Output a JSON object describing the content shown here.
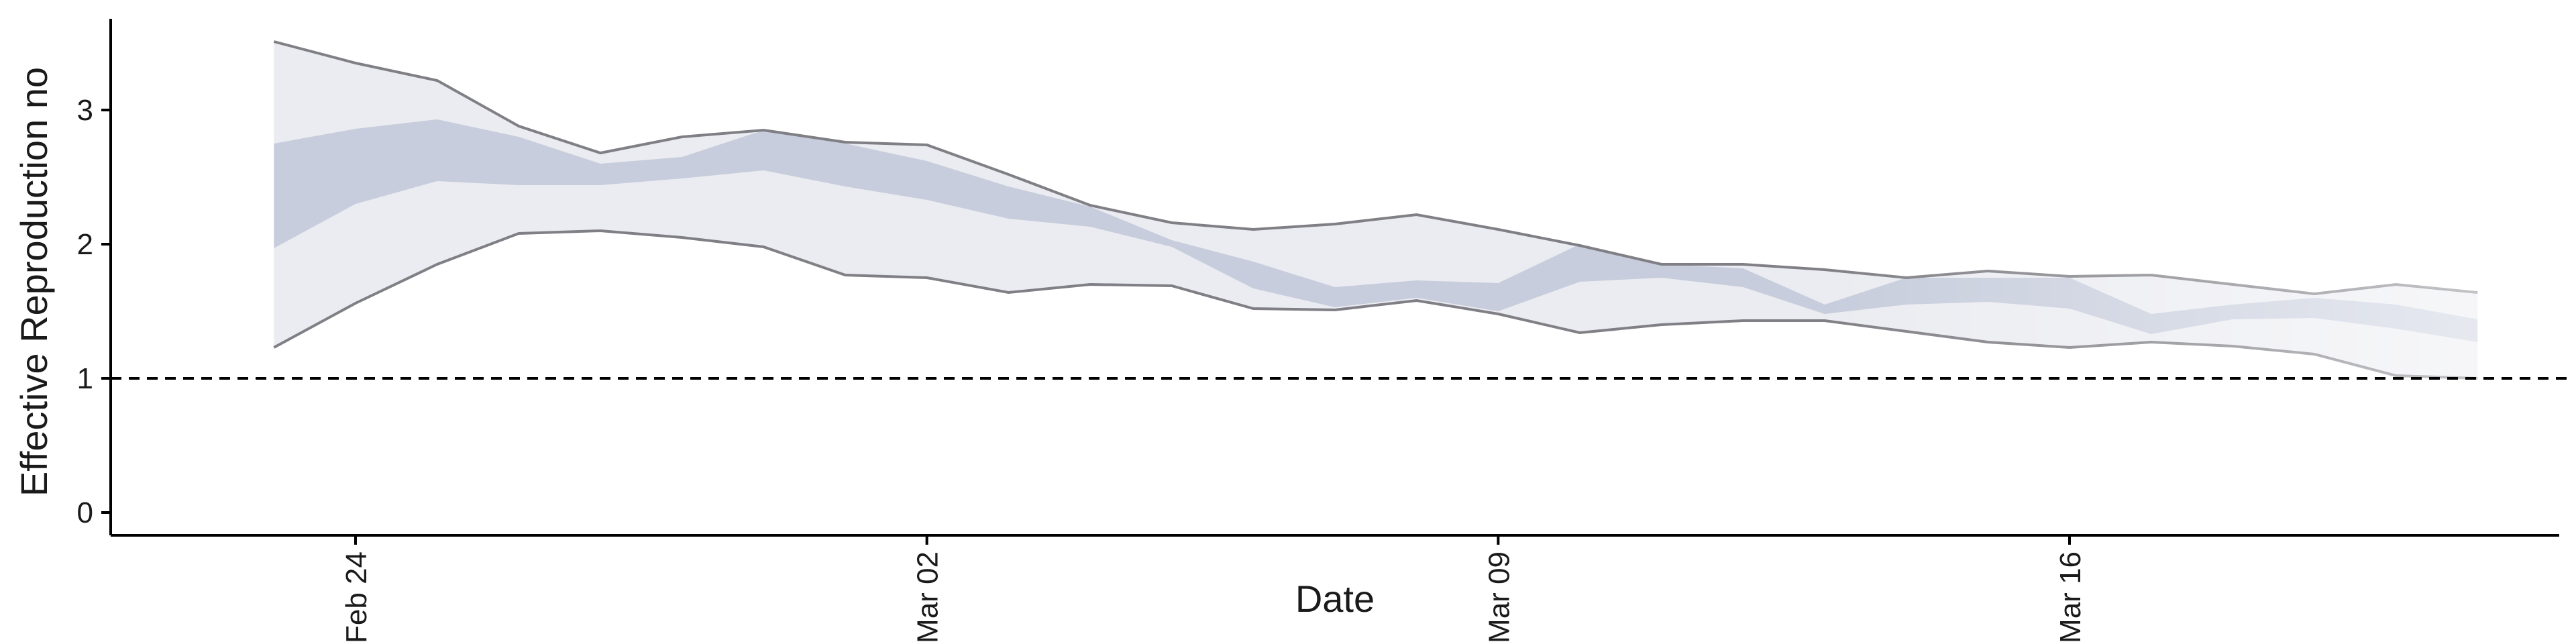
{
  "chart_data": {
    "type": "area",
    "title": "",
    "xlabel": "Date",
    "ylabel": "Effective Reproduction no",
    "x_ticks": [
      "Feb 24",
      "Mar 02",
      "Mar 09",
      "Mar 16"
    ],
    "y_ticks": [
      "0",
      "1",
      "2",
      "3"
    ],
    "xlim": [
      "2020-02-21",
      "2020-03-22"
    ],
    "ylim": [
      -0.17,
      3.73
    ],
    "grid": false,
    "reference_line": {
      "y": 1,
      "style": "dashed"
    },
    "x": [
      "2020-02-23",
      "2020-02-24",
      "2020-02-25",
      "2020-02-26",
      "2020-02-27",
      "2020-02-28",
      "2020-02-29",
      "2020-03-01",
      "2020-03-02",
      "2020-03-03",
      "2020-03-04",
      "2020-03-05",
      "2020-03-06",
      "2020-03-07",
      "2020-03-08",
      "2020-03-09",
      "2020-03-10",
      "2020-03-11",
      "2020-03-12",
      "2020-03-13",
      "2020-03-14",
      "2020-03-15",
      "2020-03-16",
      "2020-03-17",
      "2020-03-18",
      "2020-03-19",
      "2020-03-20",
      "2020-03-21"
    ],
    "outer_upper": [
      3.51,
      3.35,
      3.22,
      2.88,
      2.68,
      2.8,
      2.85,
      2.76,
      2.74,
      2.52,
      2.29,
      2.16,
      2.11,
      2.15,
      2.22,
      2.11,
      1.99,
      1.85,
      1.85,
      1.81,
      1.75,
      1.8,
      1.76,
      1.77,
      1.7,
      1.63,
      1.7,
      1.64
    ],
    "outer_lower": [
      1.23,
      1.56,
      1.85,
      2.08,
      2.1,
      2.05,
      1.98,
      1.77,
      1.75,
      1.64,
      1.7,
      1.69,
      1.52,
      1.51,
      1.58,
      1.48,
      1.34,
      1.4,
      1.43,
      1.43,
      1.35,
      1.27,
      1.23,
      1.27,
      1.24,
      1.18,
      1.02,
      1.0
    ],
    "inner_upper": [
      2.75,
      2.86,
      2.93,
      2.8,
      2.6,
      2.65,
      2.85,
      2.75,
      2.62,
      2.43,
      2.28,
      2.03,
      1.87,
      1.68,
      1.73,
      1.71,
      2.0,
      1.85,
      1.82,
      1.55,
      1.75,
      1.75,
      1.75,
      1.48,
      1.55,
      1.6,
      1.55,
      1.44
    ],
    "inner_lower": [
      1.97,
      2.3,
      2.47,
      2.44,
      2.44,
      2.49,
      2.55,
      2.43,
      2.33,
      2.19,
      2.13,
      1.98,
      1.67,
      1.53,
      1.6,
      1.5,
      1.72,
      1.75,
      1.68,
      1.48,
      1.55,
      1.57,
      1.52,
      1.33,
      1.44,
      1.45,
      1.37,
      1.27
    ],
    "colors": {
      "outer_band": "#ebecf1",
      "inner_band": "#c7cddc",
      "bound_line": "#7f7f85"
    }
  }
}
